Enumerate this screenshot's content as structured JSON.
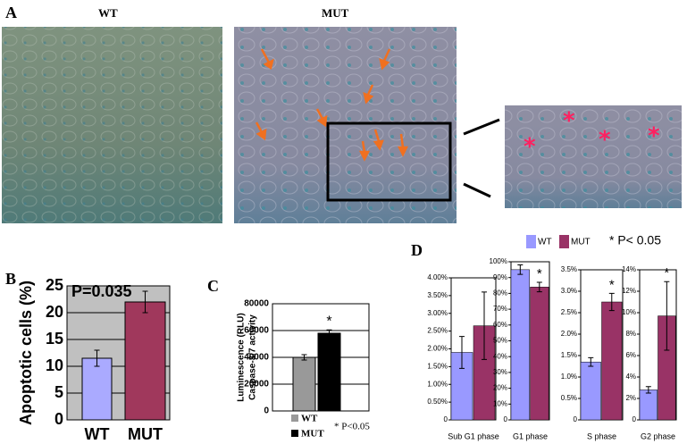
{
  "panel_labels": [
    "A",
    "B",
    "C",
    "D"
  ],
  "image_labels": [
    "WT",
    "MUT"
  ],
  "panel_d": {
    "series": [
      "WT",
      "MUT"
    ],
    "colors": [
      "#9999ff",
      "#993366"
    ],
    "note": "* P< 0.05"
  },
  "chart_data": [
    {
      "type": "bar",
      "ylabel": "Apoptotic cells (%)",
      "categories": [
        "WT",
        "MUT"
      ],
      "values": [
        11.5,
        22
      ],
      "errors": [
        1.5,
        2
      ],
      "colors": [
        "#aaaaff",
        "#a0385c"
      ],
      "annotation": "P=0.035",
      "ylim": [
        0,
        25
      ],
      "yticks": [
        0,
        5,
        10,
        15,
        20,
        25
      ],
      "grid": true,
      "background": "#c0c0c0"
    },
    {
      "type": "bar",
      "ylabel": [
        "Luminescence (RLU)",
        "Caspase-3/7 activity"
      ],
      "categories": [
        "WT",
        "MUT"
      ],
      "values": [
        40000,
        58000
      ],
      "errors": [
        2000,
        2500
      ],
      "colors": [
        "#999999",
        "#000000"
      ],
      "value_notes": [
        null,
        "*"
      ],
      "annotation": "* P<0.05",
      "ylim": [
        0,
        80000
      ],
      "yticks": [
        0,
        20000,
        40000,
        60000,
        80000
      ],
      "grid": true,
      "background": "#ffffff"
    },
    {
      "type": "bar",
      "xlabel": "Sub G1 phase",
      "values": [
        1.9,
        2.65
      ],
      "errors": [
        0.45,
        0.95
      ],
      "ylim": [
        0,
        4
      ],
      "yticks": [
        {
          "value": 0,
          "label": "0"
        },
        {
          "value": 0.5,
          "label": "0.50%"
        },
        {
          "value": 1,
          "label": "1.00%"
        },
        {
          "value": 1.5,
          "label": "1.50%"
        },
        {
          "value": 2,
          "label": "2.00%"
        },
        {
          "value": 2.5,
          "label": "2.50%"
        },
        {
          "value": 3,
          "label": "3.00%"
        },
        {
          "value": 3.5,
          "label": "3.50%"
        },
        {
          "value": 4,
          "label": "4.00%"
        }
      ]
    },
    {
      "type": "bar",
      "xlabel": "G1 phase",
      "values": [
        95,
        84
      ],
      "errors": [
        3,
        3
      ],
      "value_notes": [
        null,
        "*"
      ],
      "ylim": [
        0,
        100
      ],
      "yticks": [
        {
          "value": 0,
          "label": "0"
        },
        {
          "value": 10,
          "label": "10%"
        },
        {
          "value": 20,
          "label": "20%"
        },
        {
          "value": 30,
          "label": "30%"
        },
        {
          "value": 40,
          "label": "40%"
        },
        {
          "value": 50,
          "label": "50%"
        },
        {
          "value": 60,
          "label": "60%"
        },
        {
          "value": 70,
          "label": "70%"
        },
        {
          "value": 80,
          "label": "80%"
        },
        {
          "value": 90,
          "label": "90%"
        },
        {
          "value": 100,
          "label": "100%"
        }
      ]
    },
    {
      "type": "bar",
      "xlabel": "S phase",
      "values": [
        1.35,
        2.75
      ],
      "errors": [
        0.1,
        0.2
      ],
      "value_notes": [
        null,
        "*"
      ],
      "ylim": [
        0,
        3.5
      ],
      "yticks": [
        {
          "value": 0,
          "label": "0"
        },
        {
          "value": 0.5,
          "label": "0.5%"
        },
        {
          "value": 1,
          "label": "1.0%"
        },
        {
          "value": 1.5,
          "label": "1.5%"
        },
        {
          "value": 2,
          "label": "2.0%"
        },
        {
          "value": 2.5,
          "label": "2.5%"
        },
        {
          "value": 3,
          "label": "3.0%"
        },
        {
          "value": 3.5,
          "label": "3.5%"
        }
      ]
    },
    {
      "type": "bar",
      "xlabel": "G2 phase",
      "values": [
        2.8,
        9.7
      ],
      "errors": [
        0.3,
        3.2
      ],
      "value_notes": [
        null,
        "*"
      ],
      "ylim": [
        0,
        14
      ],
      "yticks": [
        {
          "value": 0,
          "label": "0"
        },
        {
          "value": 2,
          "label": "2%"
        },
        {
          "value": 4,
          "label": "4%"
        },
        {
          "value": 6,
          "label": "6%"
        },
        {
          "value": 8,
          "label": "8%"
        },
        {
          "value": 10,
          "label": "10%"
        },
        {
          "value": 12,
          "label": "12%"
        },
        {
          "value": 14,
          "label": "14%"
        }
      ]
    }
  ]
}
